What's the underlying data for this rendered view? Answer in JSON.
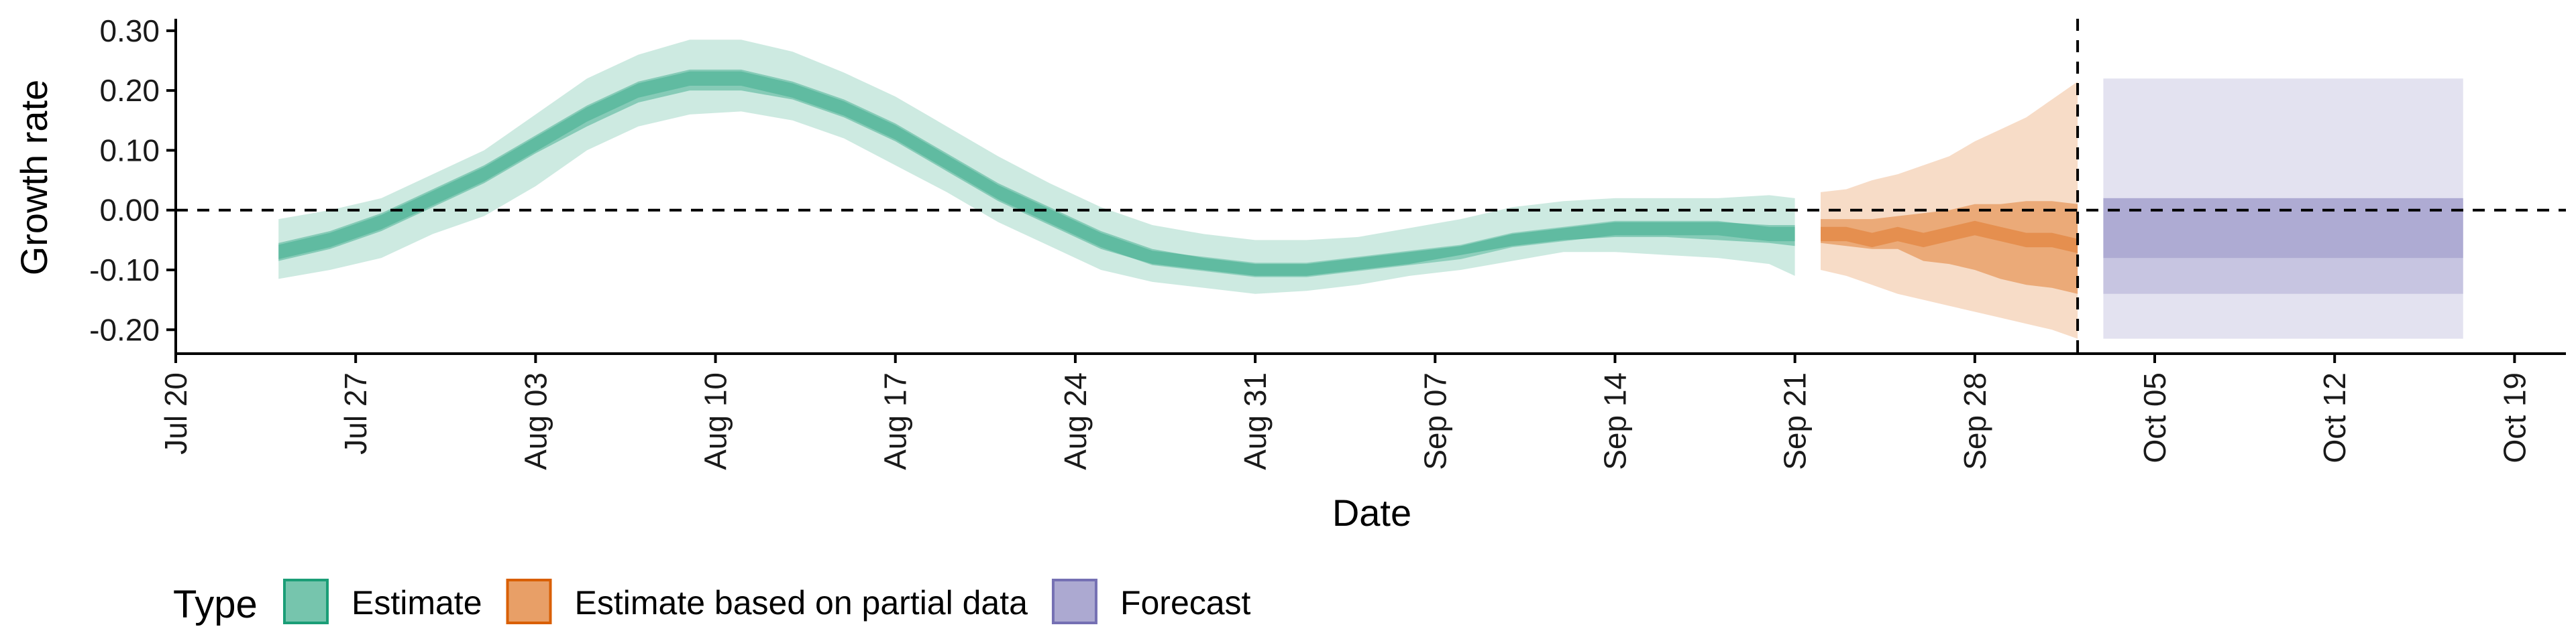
{
  "chart_data": {
    "type": "area",
    "title": "",
    "xlabel": "Date",
    "ylabel": "Growth rate",
    "x_ticks": [
      "Jul 20",
      "Jul 27",
      "Aug 03",
      "Aug 10",
      "Aug 17",
      "Aug 24",
      "Aug 31",
      "Sep 07",
      "Sep 14",
      "Sep 21",
      "Sep 28",
      "Oct 05",
      "Oct 12",
      "Oct 19"
    ],
    "y_ticks": [
      "-0.20",
      "-0.10",
      "0.00",
      "0.10",
      "0.20",
      "0.30"
    ],
    "ylim": [
      -0.24,
      0.32
    ],
    "xlim": [
      "2020-07-20",
      "2020-10-21"
    ],
    "reference_lines": {
      "horizontal_y": 0.0,
      "vertical_x": "2020-10-02"
    },
    "legend": {
      "title": "Type",
      "position": "bottom",
      "entries": [
        {
          "label": "Estimate",
          "color": "#1B9E77"
        },
        {
          "label": "Estimate based on partial data",
          "color": "#D95F02"
        },
        {
          "label": "Forecast",
          "color": "#7570B3"
        }
      ]
    },
    "series": [
      {
        "type_key": "Estimate",
        "color": "#1B9E77",
        "x": [
          "2020-07-24",
          "2020-07-26",
          "2020-07-28",
          "2020-07-30",
          "2020-08-01",
          "2020-08-03",
          "2020-08-05",
          "2020-08-07",
          "2020-08-09",
          "2020-08-11",
          "2020-08-13",
          "2020-08-15",
          "2020-08-17",
          "2020-08-19",
          "2020-08-21",
          "2020-08-23",
          "2020-08-25",
          "2020-08-27",
          "2020-08-29",
          "2020-08-31",
          "2020-09-02",
          "2020-09-04",
          "2020-09-06",
          "2020-09-08",
          "2020-09-10",
          "2020-09-12",
          "2020-09-14",
          "2020-09-16",
          "2020-09-18",
          "2020-09-20",
          "2020-09-21"
        ],
        "median": [
          -0.07,
          -0.05,
          -0.02,
          0.02,
          0.06,
          0.11,
          0.16,
          0.2,
          0.22,
          0.22,
          0.2,
          0.17,
          0.13,
          0.08,
          0.03,
          -0.01,
          -0.05,
          -0.08,
          -0.09,
          -0.1,
          -0.1,
          -0.09,
          -0.08,
          -0.07,
          -0.05,
          -0.04,
          -0.03,
          -0.03,
          -0.03,
          -0.04,
          -0.04
        ],
        "lower_50": [
          -0.085,
          -0.065,
          -0.035,
          0.005,
          0.045,
          0.095,
          0.14,
          0.18,
          0.2,
          0.2,
          0.185,
          0.155,
          0.115,
          0.065,
          0.015,
          -0.025,
          -0.065,
          -0.09,
          -0.1,
          -0.11,
          -0.11,
          -0.1,
          -0.09,
          -0.075,
          -0.06,
          -0.05,
          -0.045,
          -0.045,
          -0.05,
          -0.055,
          -0.06
        ],
        "upper_50": [
          -0.055,
          -0.035,
          -0.005,
          0.035,
          0.075,
          0.125,
          0.175,
          0.215,
          0.235,
          0.235,
          0.215,
          0.185,
          0.145,
          0.095,
          0.045,
          0.005,
          -0.035,
          -0.065,
          -0.08,
          -0.09,
          -0.09,
          -0.08,
          -0.07,
          -0.06,
          -0.04,
          -0.03,
          -0.02,
          -0.02,
          -0.02,
          -0.025,
          -0.025
        ],
        "lower_90": [
          -0.115,
          -0.1,
          -0.08,
          -0.04,
          -0.01,
          0.04,
          0.1,
          0.14,
          0.16,
          0.165,
          0.15,
          0.12,
          0.075,
          0.03,
          -0.02,
          -0.06,
          -0.1,
          -0.12,
          -0.13,
          -0.14,
          -0.135,
          -0.125,
          -0.11,
          -0.1,
          -0.085,
          -0.07,
          -0.07,
          -0.075,
          -0.08,
          -0.09,
          -0.11
        ],
        "upper_90": [
          -0.015,
          0.0,
          0.02,
          0.06,
          0.1,
          0.16,
          0.22,
          0.26,
          0.285,
          0.285,
          0.265,
          0.23,
          0.19,
          0.14,
          0.09,
          0.045,
          0.005,
          -0.025,
          -0.04,
          -0.05,
          -0.05,
          -0.045,
          -0.03,
          -0.015,
          0.005,
          0.015,
          0.02,
          0.02,
          0.02,
          0.025,
          0.02
        ]
      },
      {
        "type_key": "Estimate based on partial data",
        "color": "#D95F02",
        "x": [
          "2020-09-22",
          "2020-09-23",
          "2020-09-24",
          "2020-09-25",
          "2020-09-26",
          "2020-09-27",
          "2020-09-28",
          "2020-09-29",
          "2020-09-30",
          "2020-10-01",
          "2020-10-02"
        ],
        "median": [
          -0.04,
          -0.04,
          -0.05,
          -0.04,
          -0.05,
          -0.04,
          -0.03,
          -0.04,
          -0.05,
          -0.05,
          -0.06
        ],
        "lower_50": [
          -0.055,
          -0.06,
          -0.065,
          -0.065,
          -0.085,
          -0.09,
          -0.1,
          -0.115,
          -0.125,
          -0.13,
          -0.14
        ],
        "upper_50": [
          -0.015,
          -0.015,
          -0.015,
          -0.01,
          -0.005,
          0.0,
          0.01,
          0.01,
          0.015,
          0.015,
          0.01
        ],
        "lower_90": [
          -0.1,
          -0.11,
          -0.125,
          -0.14,
          -0.15,
          -0.16,
          -0.17,
          -0.18,
          -0.19,
          -0.2,
          -0.215
        ],
        "upper_90": [
          0.03,
          0.035,
          0.05,
          0.06,
          0.075,
          0.09,
          0.115,
          0.135,
          0.155,
          0.185,
          0.215
        ]
      },
      {
        "type_key": "Forecast",
        "color": "#7570B3",
        "x": [
          "2020-10-03",
          "2020-10-17"
        ],
        "median": [
          -0.03,
          -0.03
        ],
        "lower_50": [
          -0.08,
          -0.08
        ],
        "upper_50": [
          0.02,
          0.02
        ],
        "lower_30": [
          -0.08,
          -0.08
        ],
        "upper_30": [
          0.02,
          0.02
        ],
        "lower_90": [
          -0.215,
          -0.215
        ],
        "upper_90": [
          0.22,
          0.22
        ],
        "lower_75": [
          -0.14,
          -0.14
        ],
        "upper_75": [
          0.02,
          0.02
        ]
      }
    ]
  }
}
